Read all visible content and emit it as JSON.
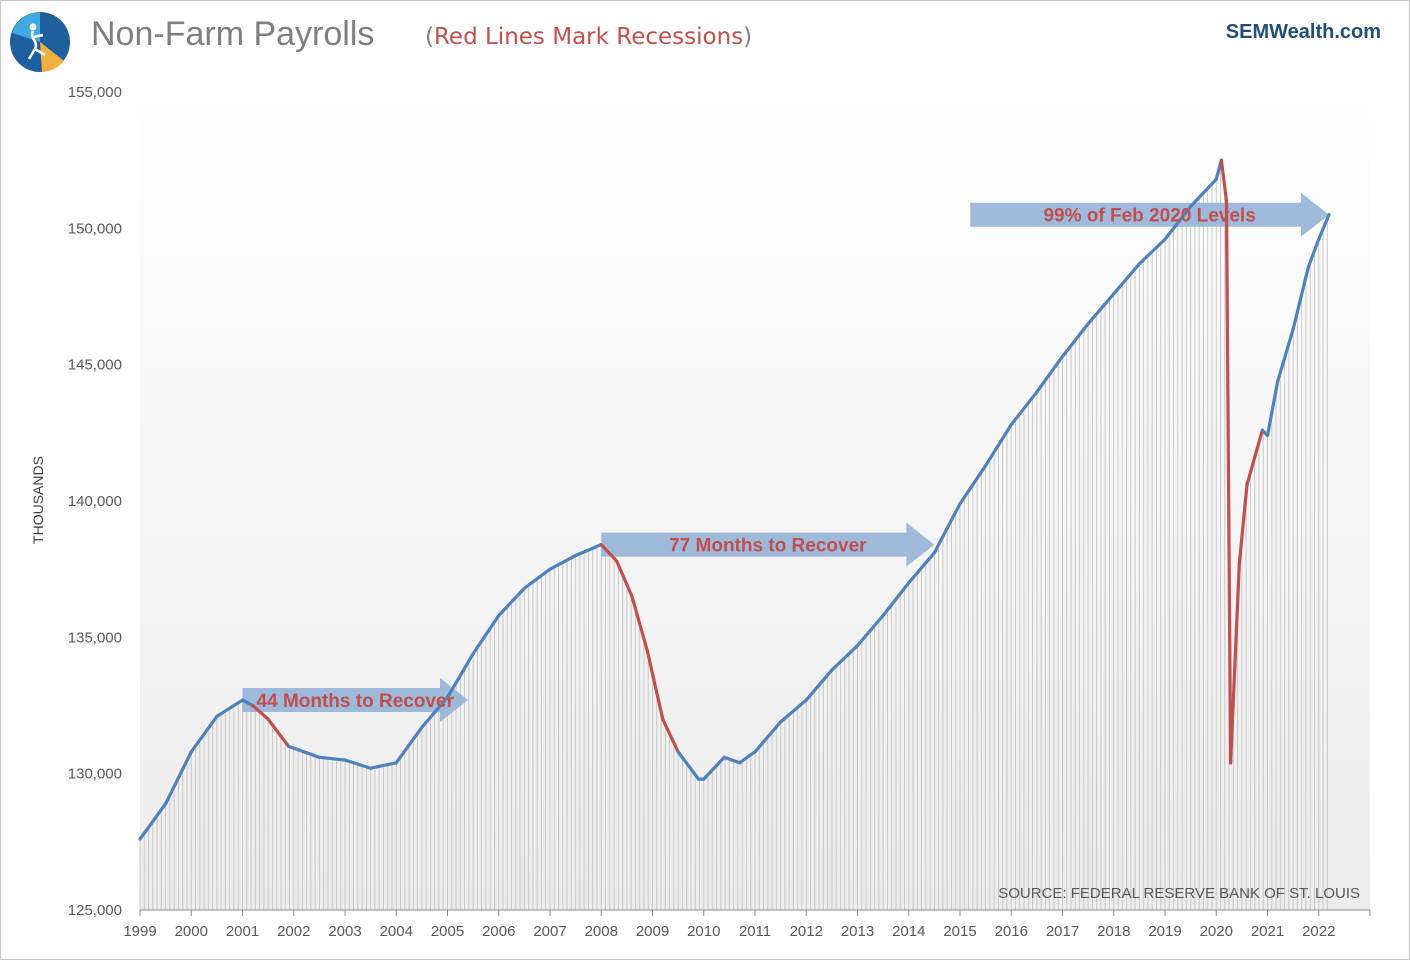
{
  "header": {
    "title": "Non-Farm Payrolls",
    "subtitle_open": "(",
    "subtitle": "Red Lines Mark Recessions",
    "subtitle_close": ")",
    "brand": "SEMWealth.com"
  },
  "colors": {
    "expansion": "#4f81bd",
    "recession": "#c0504d",
    "arrow": "#95b3d7",
    "title": "#7f7f7f",
    "brand": "#1f4e79",
    "bars": "#c8c8c8"
  },
  "chart_data": {
    "type": "line",
    "title": "Non-Farm Payrolls",
    "ylabel": "THOUSANDS",
    "xlabel": "",
    "ylim": [
      125000,
      155000
    ],
    "xlim": [
      1999.0,
      2023.0
    ],
    "yticks": [
      125000,
      130000,
      135000,
      140000,
      145000,
      150000,
      155000
    ],
    "ytick_labels": [
      "125,000",
      "130,000",
      "135,000",
      "140,000",
      "145,000",
      "150,000",
      "155,000"
    ],
    "xtick_labels": [
      "1999",
      "2000",
      "2001",
      "2002",
      "2003",
      "2004",
      "2005",
      "2006",
      "2007",
      "2008",
      "2009",
      "2010",
      "2011",
      "2012",
      "2013",
      "2014",
      "2015",
      "2016",
      "2017",
      "2018",
      "2019",
      "2020",
      "2021",
      "2022"
    ],
    "series": [
      {
        "x": [
          1999.0,
          1999.5,
          2000.0,
          2000.5,
          2001.0,
          2001.2,
          2001.5,
          2001.9,
          2002.5,
          2003.0,
          2003.5,
          2004.0,
          2004.5,
          2005.0,
          2005.5,
          2006.0,
          2006.5,
          2007.0,
          2007.5,
          2008.0,
          2008.3,
          2008.6,
          2008.9,
          2009.2,
          2009.5,
          2009.9,
          2010.0,
          2010.4,
          2010.7,
          2011.0,
          2011.5,
          2012.0,
          2012.5,
          2013.0,
          2013.5,
          2014.0,
          2014.5,
          2015.0,
          2015.5,
          2016.0,
          2016.5,
          2017.0,
          2017.5,
          2018.0,
          2018.5,
          2019.0,
          2019.5,
          2020.0,
          2020.1,
          2020.2,
          2020.28,
          2020.45,
          2020.6,
          2020.75,
          2020.9,
          2021.0,
          2021.2,
          2021.5,
          2021.8,
          2022.0,
          2022.2
        ],
        "y": [
          127600,
          128900,
          130800,
          132100,
          132700,
          132500,
          132000,
          131000,
          130600,
          130500,
          130200,
          130400,
          131700,
          132800,
          134400,
          135800,
          136800,
          137500,
          138000,
          138400,
          137800,
          136500,
          134500,
          132000,
          130800,
          129800,
          129800,
          130600,
          130400,
          130800,
          131900,
          132700,
          133800,
          134700,
          135800,
          137000,
          138100,
          139900,
          141300,
          142800,
          144000,
          145300,
          146500,
          147600,
          148700,
          149600,
          150800,
          151800,
          152500,
          151000,
          130400,
          137700,
          140600,
          141600,
          142600,
          142400,
          144400,
          146300,
          148600,
          149600,
          150500
        ]
      }
    ],
    "recession_segments": [
      {
        "from": 2001.2,
        "to": 2001.9
      },
      {
        "from": 2008.0,
        "to": 2009.5
      },
      {
        "from": 2020.1,
        "to": 2020.9
      }
    ],
    "annotations": [
      {
        "text": "44 Months to Recover",
        "from": 2001.0,
        "to": 2005.4,
        "y": 132700
      },
      {
        "text": "77 Months to Recover",
        "from": 2008.0,
        "to": 2014.5,
        "y": 138400
      },
      {
        "text": "99% of Feb 2020 Levels",
        "from": 2015.2,
        "to": 2022.2,
        "y": 150500
      }
    ],
    "source": "SOURCE: FEDERAL RESERVE BANK OF ST. LOUIS",
    "grid": false,
    "legend": "none"
  }
}
